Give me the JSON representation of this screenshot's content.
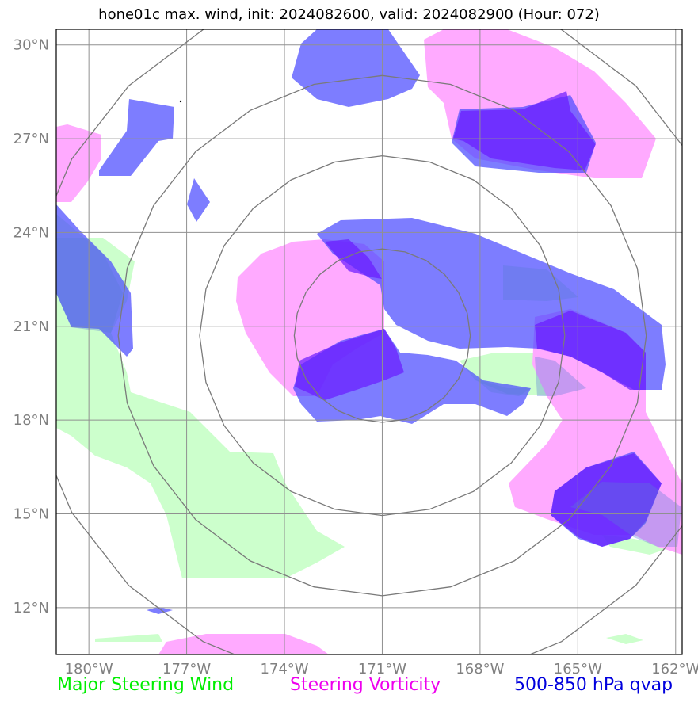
{
  "title": "hone01c max. wind, init: 2024082600, valid: 2024082900 (Hour: 072)",
  "map": {
    "lon_range": [
      -181,
      -161.8
    ],
    "lat_range": [
      10.5,
      30.5
    ],
    "lon_ticks": [
      {
        "value": -180,
        "label": "180°W"
      },
      {
        "value": -177,
        "label": "177°W"
      },
      {
        "value": -174,
        "label": "174°W"
      },
      {
        "value": -171,
        "label": "171°W"
      },
      {
        "value": -168,
        "label": "168°W"
      },
      {
        "value": -165,
        "label": "165°W"
      },
      {
        "value": -162,
        "label": "162°W"
      }
    ],
    "lat_ticks": [
      {
        "value": 30,
        "label": "30°N"
      },
      {
        "value": 27,
        "label": "27°N"
      },
      {
        "value": 24,
        "label": "24°N"
      },
      {
        "value": 21,
        "label": "21°N"
      },
      {
        "value": 18,
        "label": "18°N"
      },
      {
        "value": 15,
        "label": "15°N"
      },
      {
        "value": 12,
        "label": "12°N"
      }
    ],
    "grid": true,
    "range_rings_center": {
      "lon": -171.0,
      "lat": 20.7
    },
    "range_ring_radii_deg": [
      2.7,
      5.6,
      8.1,
      11.0
    ]
  },
  "layers": {
    "wind": {
      "color": "#ccffcc"
    },
    "vorticity": {
      "color": "#ffaaff"
    },
    "qvap": {
      "color": "#4b4bff"
    },
    "qvap_dark": {
      "color": "#6a1aff"
    }
  },
  "legend": {
    "wind": {
      "label": "Major Steering Wind",
      "color": "#00ee00"
    },
    "vorticity": {
      "label": "Steering Vorticity",
      "color": "#ee00ee"
    },
    "qvap": {
      "label": "500-850 hPa qvap",
      "color": "#0000dd"
    }
  }
}
